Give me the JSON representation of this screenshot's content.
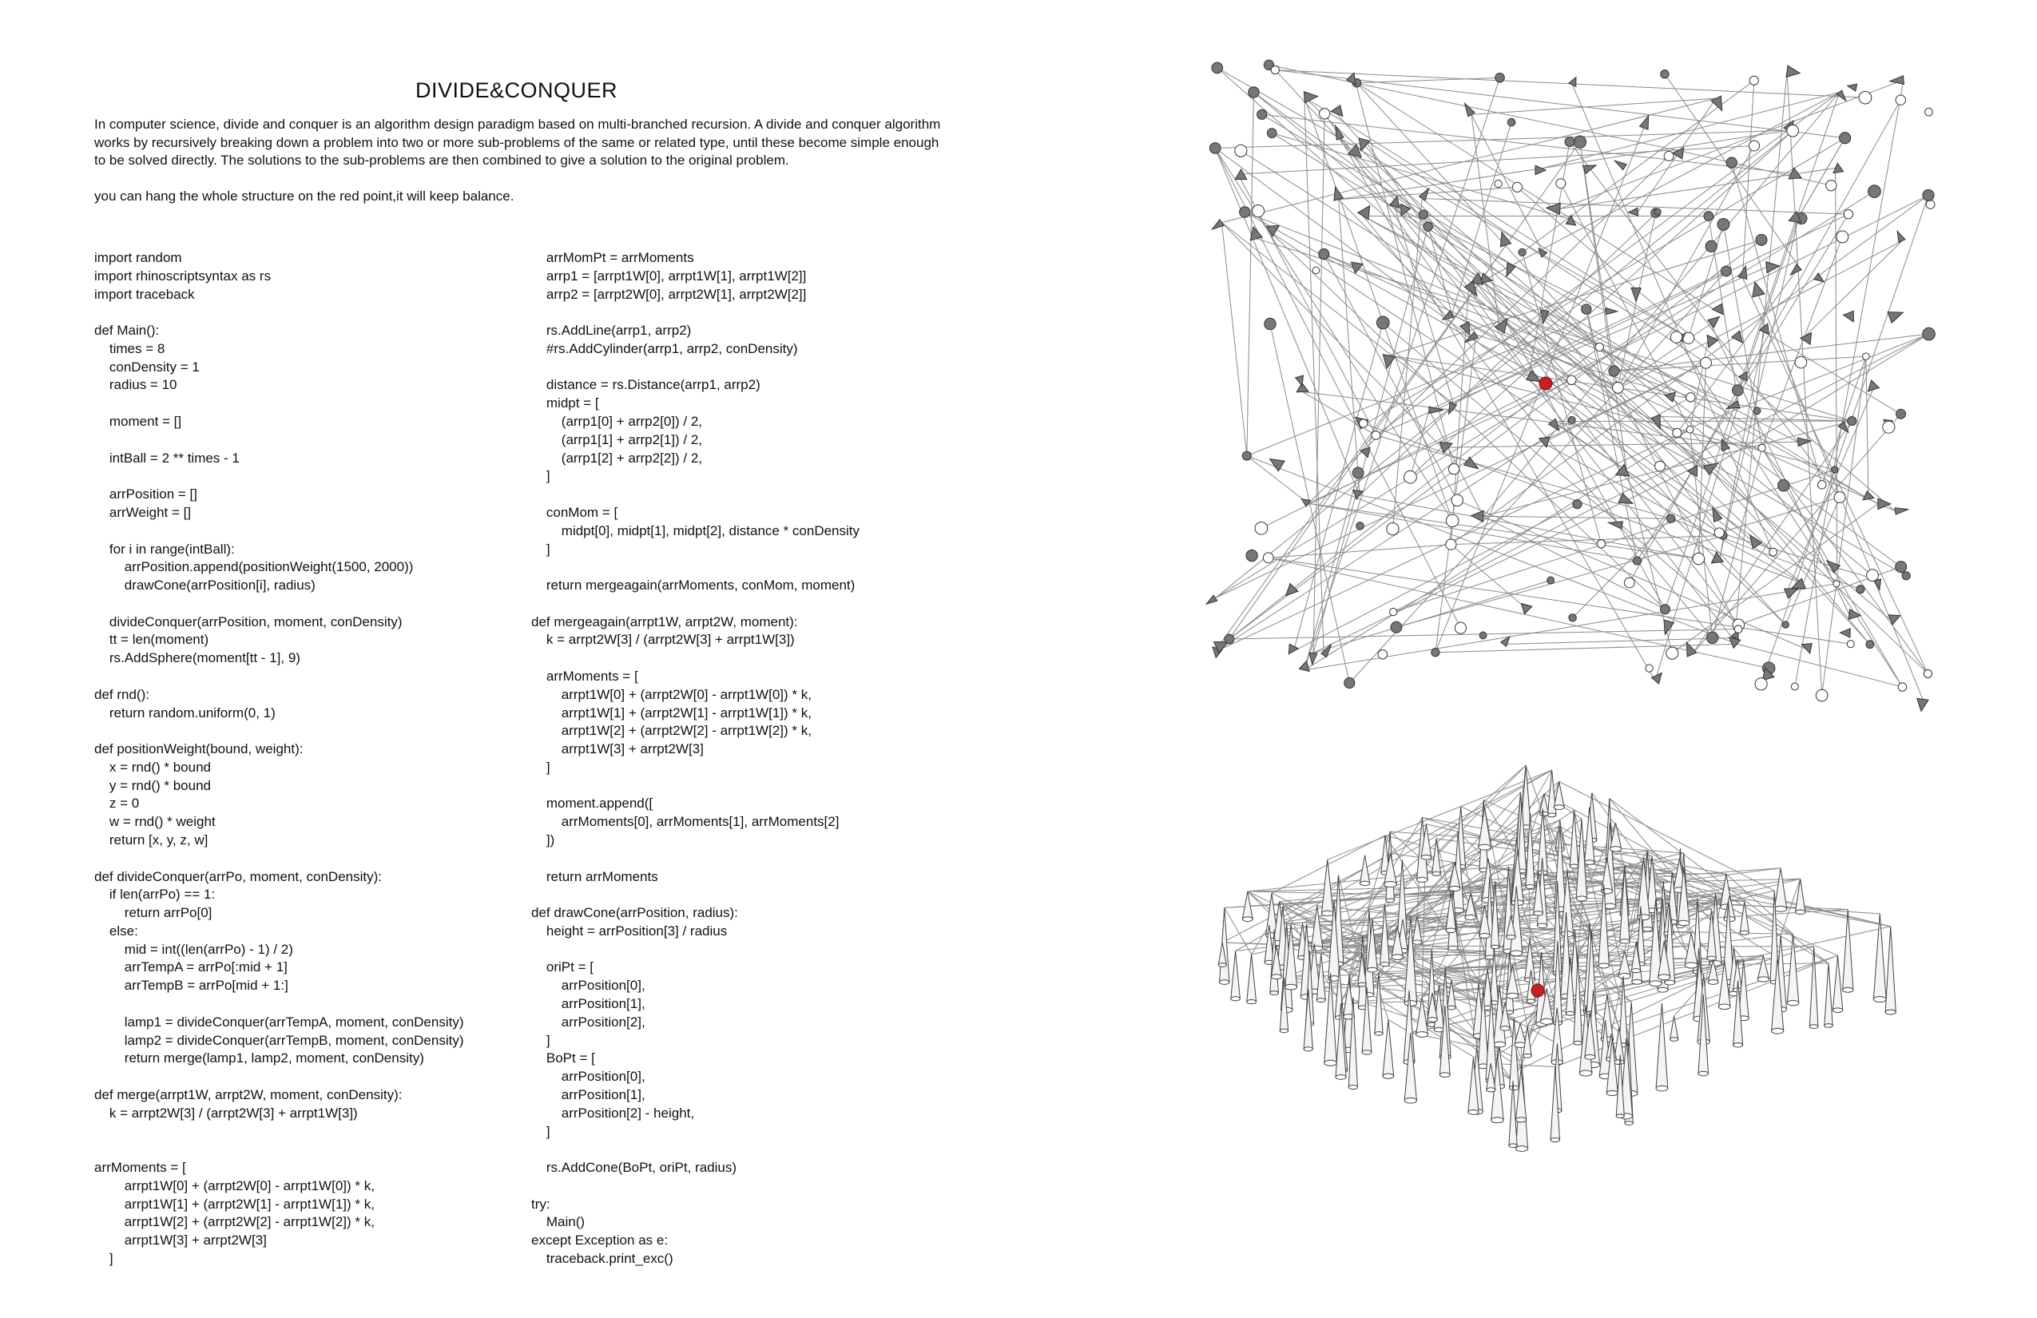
{
  "title": "DIVIDE&CONQUER",
  "intro": {
    "paragraph": "In computer science, divide and conquer is an algorithm design paradigm based on multi-branched recursion. A divide and conquer algorithm works by recursively breaking down a problem into two or more sub-problems of the same or related type, until these become simple enough to be solved directly. The solutions to the sub-problems are then combined to give a solution to the original problem.",
    "note": "you can hang the whole structure on the red point,it will keep balance."
  },
  "code": {
    "left": "import random\nimport rhinoscriptsyntax as rs\nimport traceback\n\ndef Main():\n    times = 8\n    conDensity = 1\n    radius = 10\n\n    moment = []\n\n    intBall = 2 ** times - 1\n\n    arrPosition = []\n    arrWeight = []\n\n    for i in range(intBall):\n        arrPosition.append(positionWeight(1500, 2000))\n        drawCone(arrPosition[i], radius)\n\n    divideConquer(arrPosition, moment, conDensity)\n    tt = len(moment)\n    rs.AddSphere(moment[tt - 1], 9)\n\ndef rnd():\n    return random.uniform(0, 1)\n\ndef positionWeight(bound, weight):\n    x = rnd() * bound\n    y = rnd() * bound\n    z = 0\n    w = rnd() * weight\n    return [x, y, z, w]\n\ndef divideConquer(arrPo, moment, conDensity):\n    if len(arrPo) == 1:\n        return arrPo[0]\n    else:\n        mid = int((len(arrPo) - 1) / 2)\n        arrTempA = arrPo[:mid + 1]\n        arrTempB = arrPo[mid + 1:]\n\n        lamp1 = divideConquer(arrTempA, moment, conDensity)\n        lamp2 = divideConquer(arrTempB, moment, conDensity)\n        return merge(lamp1, lamp2, moment, conDensity)\n\ndef merge(arrpt1W, arrpt2W, moment, conDensity):\n    k = arrpt2W[3] / (arrpt2W[3] + arrpt1W[3])\n\n\narrMoments = [\n        arrpt1W[0] + (arrpt2W[0] - arrpt1W[0]) * k,\n        arrpt1W[1] + (arrpt2W[1] - arrpt1W[1]) * k,\n        arrpt1W[2] + (arrpt2W[2] - arrpt1W[2]) * k,\n        arrpt1W[3] + arrpt2W[3]\n    ]",
    "right": "    arrMomPt = arrMoments\n    arrp1 = [arrpt1W[0], arrpt1W[1], arrpt1W[2]]\n    arrp2 = [arrpt2W[0], arrpt2W[1], arrpt2W[2]]\n\n    rs.AddLine(arrp1, arrp2)\n    #rs.AddCylinder(arrp1, arrp2, conDensity)\n\n    distance = rs.Distance(arrp1, arrp2)\n    midpt = [\n        (arrp1[0] + arrp2[0]) / 2,\n        (arrp1[1] + arrp2[1]) / 2,\n        (arrp1[2] + arrp2[2]) / 2,\n    ]\n\n    conMom = [\n        midpt[0], midpt[1], midpt[2], distance * conDensity\n    ]\n\n    return mergeagain(arrMoments, conMom, moment)\n\ndef mergeagain(arrpt1W, arrpt2W, moment):\n    k = arrpt2W[3] / (arrpt2W[3] + arrpt1W[3])\n\n    arrMoments = [\n        arrpt1W[0] + (arrpt2W[0] - arrpt1W[0]) * k,\n        arrpt1W[1] + (arrpt2W[1] - arrpt1W[1]) * k,\n        arrpt1W[2] + (arrpt2W[2] - arrpt1W[2]) * k,\n        arrpt1W[3] + arrpt2W[3]\n    ]\n\n    moment.append([\n        arrMoments[0], arrMoments[1], arrMoments[2]\n    ])\n\n    return arrMoments\n\ndef drawCone(arrPosition, radius):\n    height = arrPosition[3] / radius\n\n    oriPt = [\n        arrPosition[0],\n        arrPosition[1],\n        arrPosition[2],\n    ]\n    BoPt = [\n        arrPosition[0],\n        arrPosition[1],\n        arrPosition[2] - height,\n    ]\n\n    rs.AddCone(BoPt, oriPt, radius)\n\ntry:\n    Main()\nexcept Exception as e:\n    traceback.print_exc()"
  },
  "figures": {
    "line_color": "#8a8a8a",
    "cone_fill": "#777777",
    "balance_point_color": "#c62026"
  }
}
